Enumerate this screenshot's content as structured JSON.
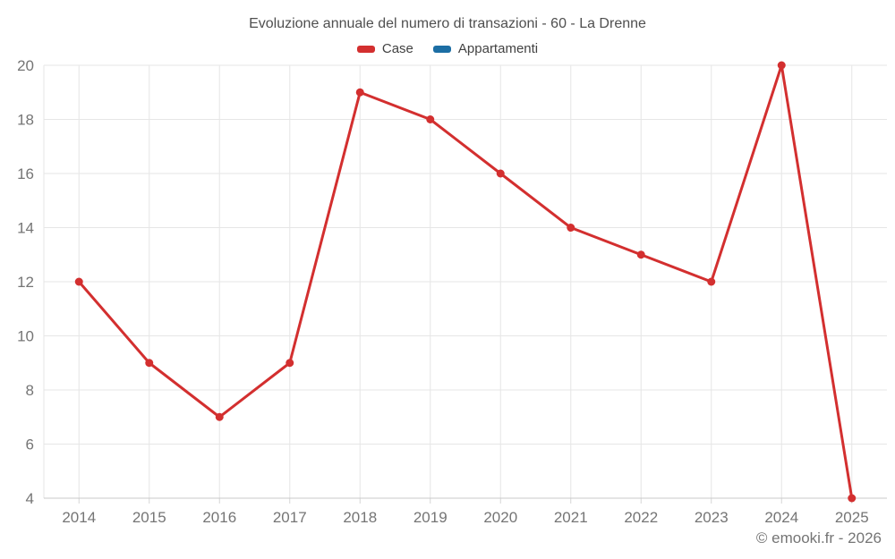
{
  "chart": {
    "title": "Evoluzione annuale del numero di transazioni - 60 - La Drenne",
    "watermark": "© emooki.fr - 2026",
    "legend": [
      {
        "label": "Case",
        "color": "#d32f2f"
      },
      {
        "label": "Appartamenti",
        "color": "#1c6ea4"
      }
    ]
  },
  "chart_data": {
    "type": "line",
    "title": "Evoluzione annuale del numero di transazioni - 60 - La Drenne",
    "categories": [
      "2014",
      "2015",
      "2016",
      "2017",
      "2018",
      "2019",
      "2020",
      "2021",
      "2022",
      "2023",
      "2024",
      "2025"
    ],
    "series": [
      {
        "name": "Case",
        "color": "#d32f2f",
        "values": [
          12,
          9,
          7,
          9,
          19,
          18,
          16,
          14,
          13,
          12,
          20,
          4
        ]
      },
      {
        "name": "Appartamenti",
        "color": "#1c6ea4",
        "values": []
      }
    ],
    "xlabel": "",
    "ylabel": "",
    "ylim": [
      4,
      20
    ],
    "y_ticks": [
      4,
      6,
      8,
      10,
      12,
      14,
      16,
      18,
      20
    ],
    "grid": true,
    "legend_position": "top",
    "colors": {
      "grid_line": "#e6e6e6",
      "axis_line": "#c9c9c9",
      "tick_mark": "#d6d6d6",
      "axis_label": "#757575",
      "title_text": "#4f4f4f",
      "legend_text": "#424242",
      "watermark_text": "#757575",
      "background": "#ffffff"
    }
  }
}
